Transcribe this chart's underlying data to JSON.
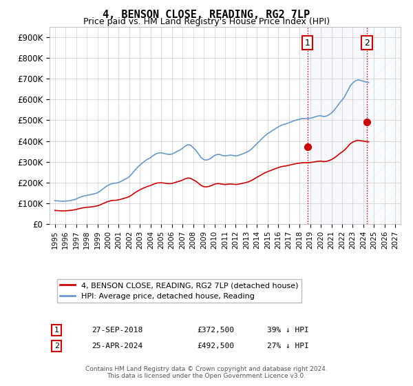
{
  "title": "4, BENSON CLOSE, READING, RG2 7LP",
  "subtitle": "Price paid vs. HM Land Registry's House Price Index (HPI)",
  "hpi_label": "HPI: Average price, detached house, Reading",
  "property_label": "4, BENSON CLOSE, READING, RG2 7LP (detached house)",
  "hpi_color": "#6699cc",
  "property_color": "#cc0000",
  "vertical_line_color": "#cc0000",
  "shaded_region_color": "#dce6f5",
  "ylabel": "",
  "ylim": [
    0,
    950000
  ],
  "yticks": [
    0,
    100000,
    200000,
    300000,
    400000,
    500000,
    600000,
    700000,
    800000,
    900000
  ],
  "ytick_labels": [
    "£0",
    "£100K",
    "£200K",
    "£300K",
    "£400K",
    "£500K",
    "£600K",
    "£700K",
    "£800K",
    "£900K"
  ],
  "transaction1": {
    "date": "27-SEP-2018",
    "price": 372500,
    "pct": "39%",
    "label": "1",
    "year": 2018.75
  },
  "transaction2": {
    "date": "25-APR-2024",
    "price": 492500,
    "pct": "27%",
    "label": "2",
    "year": 2024.33
  },
  "footnote1": "Contains HM Land Registry data © Crown copyright and database right 2024.",
  "footnote2": "This data is licensed under the Open Government Licence v3.0.",
  "hpi_data": {
    "years": [
      1995.0,
      1995.25,
      1995.5,
      1995.75,
      1996.0,
      1996.25,
      1996.5,
      1996.75,
      1997.0,
      1997.25,
      1997.5,
      1997.75,
      1998.0,
      1998.25,
      1998.5,
      1998.75,
      1999.0,
      1999.25,
      1999.5,
      1999.75,
      2000.0,
      2000.25,
      2000.5,
      2000.75,
      2001.0,
      2001.25,
      2001.5,
      2001.75,
      2002.0,
      2002.25,
      2002.5,
      2002.75,
      2003.0,
      2003.25,
      2003.5,
      2003.75,
      2004.0,
      2004.25,
      2004.5,
      2004.75,
      2005.0,
      2005.25,
      2005.5,
      2005.75,
      2006.0,
      2006.25,
      2006.5,
      2006.75,
      2007.0,
      2007.25,
      2007.5,
      2007.75,
      2008.0,
      2008.25,
      2008.5,
      2008.75,
      2009.0,
      2009.25,
      2009.5,
      2009.75,
      2010.0,
      2010.25,
      2010.5,
      2010.75,
      2011.0,
      2011.25,
      2011.5,
      2011.75,
      2012.0,
      2012.25,
      2012.5,
      2012.75,
      2013.0,
      2013.25,
      2013.5,
      2013.75,
      2014.0,
      2014.25,
      2014.5,
      2014.75,
      2015.0,
      2015.25,
      2015.5,
      2015.75,
      2016.0,
      2016.25,
      2016.5,
      2016.75,
      2017.0,
      2017.25,
      2017.5,
      2017.75,
      2018.0,
      2018.25,
      2018.5,
      2018.75,
      2019.0,
      2019.25,
      2019.5,
      2019.75,
      2020.0,
      2020.25,
      2020.5,
      2020.75,
      2021.0,
      2021.25,
      2021.5,
      2021.75,
      2022.0,
      2022.25,
      2022.5,
      2022.75,
      2023.0,
      2023.25,
      2023.5,
      2023.75,
      2024.0,
      2024.25,
      2024.5
    ],
    "values": [
      112000,
      111000,
      110000,
      109000,
      110000,
      111000,
      113000,
      116000,
      120000,
      126000,
      131000,
      135000,
      138000,
      140000,
      143000,
      146000,
      150000,
      158000,
      168000,
      178000,
      186000,
      192000,
      196000,
      197000,
      200000,
      206000,
      213000,
      219000,
      228000,
      242000,
      258000,
      272000,
      284000,
      295000,
      305000,
      313000,
      320000,
      330000,
      338000,
      342000,
      343000,
      340000,
      337000,
      335000,
      337000,
      343000,
      350000,
      356000,
      365000,
      375000,
      382000,
      380000,
      368000,
      355000,
      338000,
      320000,
      310000,
      308000,
      312000,
      320000,
      330000,
      335000,
      335000,
      330000,
      328000,
      330000,
      332000,
      330000,
      328000,
      330000,
      335000,
      340000,
      345000,
      352000,
      362000,
      375000,
      388000,
      400000,
      413000,
      425000,
      435000,
      443000,
      452000,
      460000,
      468000,
      475000,
      480000,
      483000,
      488000,
      493000,
      498000,
      502000,
      505000,
      508000,
      508000,
      508000,
      510000,
      513000,
      517000,
      521000,
      522000,
      518000,
      520000,
      526000,
      535000,
      548000,
      565000,
      583000,
      598000,
      615000,
      640000,
      665000,
      680000,
      690000,
      695000,
      692000,
      688000,
      685000,
      682000
    ],
    "property_values": [
      65000,
      64000,
      63000,
      62500,
      63000,
      64000,
      65500,
      67000,
      69500,
      73000,
      76000,
      78500,
      80000,
      81000,
      82500,
      84500,
      87000,
      91500,
      97500,
      103000,
      108000,
      111500,
      113500,
      114000,
      116000,
      119500,
      123500,
      127000,
      132000,
      140000,
      149500,
      157500,
      164500,
      171000,
      176500,
      181500,
      185500,
      191000,
      196000,
      198000,
      198500,
      197000,
      195000,
      194000,
      195000,
      199000,
      203000,
      206500,
      211500,
      217500,
      221500,
      220000,
      213000,
      206000,
      196000,
      185500,
      179500,
      178500,
      181000,
      185500,
      191500,
      194500,
      194000,
      191500,
      190000,
      191500,
      192500,
      191500,
      190000,
      191500,
      194000,
      197000,
      200000,
      204000,
      210000,
      217500,
      225000,
      232000,
      239500,
      246500,
      252000,
      257000,
      262000,
      267000,
      271500,
      275500,
      278500,
      280000,
      283000,
      286000,
      289000,
      291500,
      293000,
      295000,
      295000,
      295000,
      296000,
      298000,
      300000,
      302000,
      303000,
      300500,
      301500,
      305000,
      310500,
      318000,
      327500,
      338000,
      347000,
      357000,
      371000,
      386000,
      394500,
      400500,
      403000,
      401500,
      399500,
      397500,
      396000
    ]
  }
}
